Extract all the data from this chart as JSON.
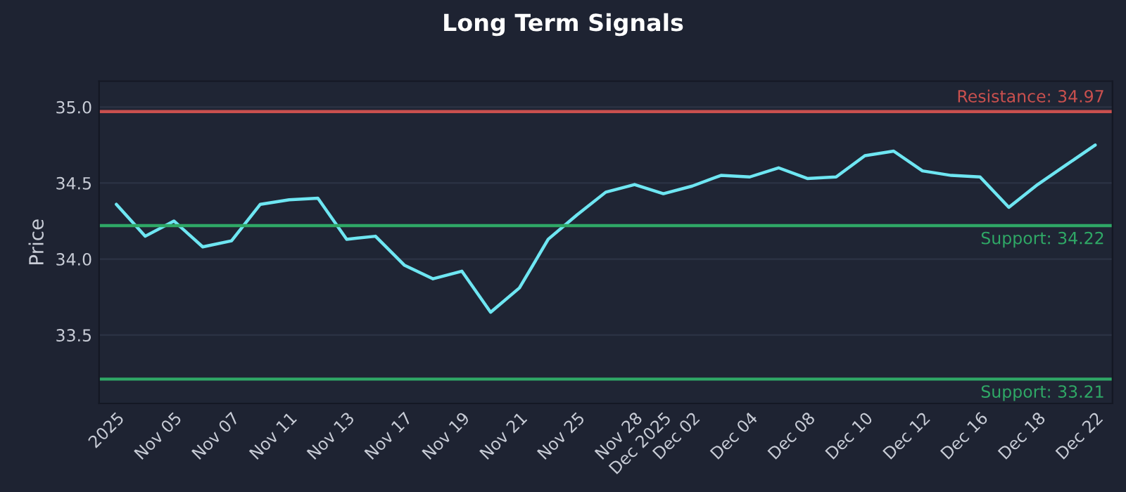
{
  "chart_data": {
    "type": "line",
    "title": "Long Term Signals",
    "ylabel": "Price",
    "categories": [
      "2025",
      null,
      "Nov 05",
      null,
      "Nov 07",
      null,
      "Nov 11",
      null,
      "Nov 13",
      null,
      "Nov 17",
      null,
      "Nov 19",
      null,
      "Nov 21",
      null,
      "Nov 25",
      null,
      "Nov 28",
      "Dec 2025",
      "Dec 02",
      null,
      "Dec 04",
      null,
      "Dec 08",
      null,
      "Dec 10",
      null,
      "Dec 12",
      null,
      "Dec 16",
      null,
      "Dec 18",
      null,
      "Dec 22"
    ],
    "series": [
      {
        "color": "#6ee6f2",
        "values": [
          34.36,
          34.15,
          34.25,
          34.08,
          34.12,
          34.36,
          34.39,
          34.4,
          34.13,
          34.15,
          33.96,
          33.87,
          33.92,
          33.65,
          33.81,
          34.13,
          34.29,
          34.44,
          34.49,
          34.43,
          34.48,
          34.55,
          34.54,
          34.6,
          34.53,
          34.54,
          34.68,
          34.71,
          34.58,
          34.55,
          34.54,
          34.34,
          34.49,
          34.62,
          34.75
        ]
      }
    ],
    "ylim": [
      33.05,
      35.17
    ],
    "yticks": [
      33.5,
      {
        "value": 34,
        "label": "34.0"
      },
      34.5,
      {
        "value": 35,
        "label": "35.0"
      }
    ],
    "grid": "y",
    "ref_lines": [
      {
        "axis": "y",
        "value": 34.97,
        "label": "Resistance: 34.97",
        "color": "#c9504e"
      },
      {
        "axis": "y",
        "value": 34.22,
        "label": "Support: 34.22",
        "color": "#2fa866"
      },
      {
        "axis": "y",
        "value": 33.21,
        "label": "Support: 33.21",
        "color": "#2fa866"
      }
    ]
  }
}
